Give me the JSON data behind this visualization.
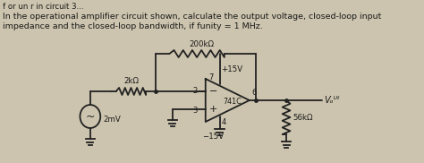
{
  "bg_color": "#ccc4ae",
  "text_color": "#1a1a1a",
  "figsize": [
    4.74,
    1.82
  ],
  "dpi": 100,
  "header": "f or un r in circuit 3...",
  "line1": "In the operational amplifier circuit shown, calculate the output voltage, closed-loop input",
  "line2": "impedance and the closed-loop bandwidth, if funity = 1 MHz.",
  "lw": 1.3,
  "lc": "#222222"
}
